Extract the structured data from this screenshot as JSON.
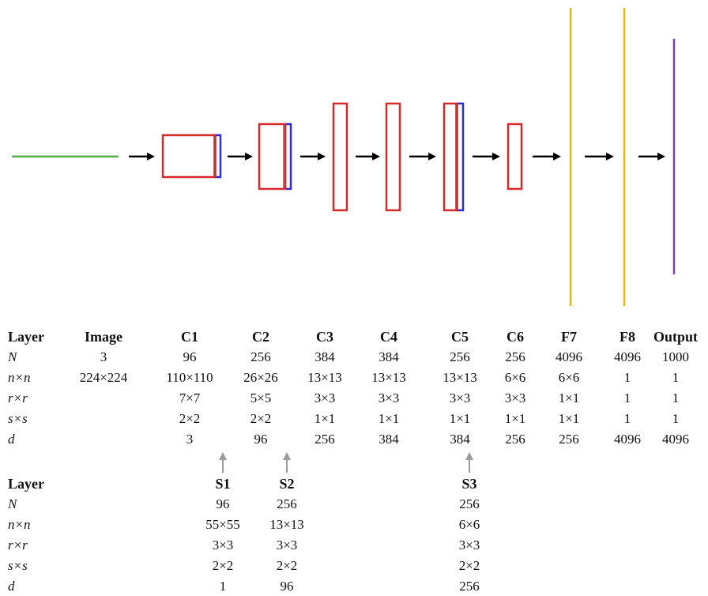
{
  "colors": {
    "input_line": "#4caf3e",
    "conv_box": "#d42a2a",
    "pool_bar": "#a27b72",
    "norm_bar": "#2b2bdd",
    "fc_line": "#e7b81c",
    "output_line": "#7b3fb8",
    "arrow": "#000000",
    "sub_arrow": "#9a9a9a"
  },
  "table1": {
    "row_labels": [
      "Layer",
      "N",
      "n×n",
      "r×r",
      "s×s",
      "d"
    ],
    "columns": [
      {
        "name": "Image",
        "values": [
          "3",
          "224×224",
          "",
          "",
          ""
        ]
      },
      {
        "name": "C1",
        "values": [
          "96",
          "110×110",
          "7×7",
          "2×2",
          "3"
        ]
      },
      {
        "name": "C2",
        "values": [
          "256",
          "26×26",
          "5×5",
          "2×2",
          "96"
        ]
      },
      {
        "name": "C3",
        "values": [
          "384",
          "13×13",
          "3×3",
          "1×1",
          "256"
        ]
      },
      {
        "name": "C4",
        "values": [
          "384",
          "13×13",
          "3×3",
          "1×1",
          "384"
        ]
      },
      {
        "name": "C5",
        "values": [
          "256",
          "13×13",
          "3×3",
          "1×1",
          "384"
        ]
      },
      {
        "name": "C6",
        "values": [
          "256",
          "6×6",
          "3×3",
          "1×1",
          "256"
        ]
      },
      {
        "name": "F7",
        "values": [
          "4096",
          "6×6",
          "1×1",
          "1×1",
          "256"
        ]
      },
      {
        "name": "F8",
        "values": [
          "4096",
          "1",
          "1",
          "1",
          "4096"
        ]
      },
      {
        "name": "Output",
        "values": [
          "1000",
          "1",
          "1",
          "1",
          "4096"
        ]
      }
    ]
  },
  "table2": {
    "row_labels": [
      "Layer",
      "N",
      "n×n",
      "r×r",
      "s×s",
      "d"
    ],
    "columns": [
      {
        "name": "S1",
        "values": [
          "96",
          "55×55",
          "3×3",
          "2×2",
          "1"
        ]
      },
      {
        "name": "S2",
        "values": [
          "256",
          "13×13",
          "3×3",
          "2×2",
          "96"
        ]
      },
      {
        "name": "S3",
        "values": [
          "256",
          "6×6",
          "3×3",
          "2×2",
          "256"
        ]
      }
    ]
  }
}
